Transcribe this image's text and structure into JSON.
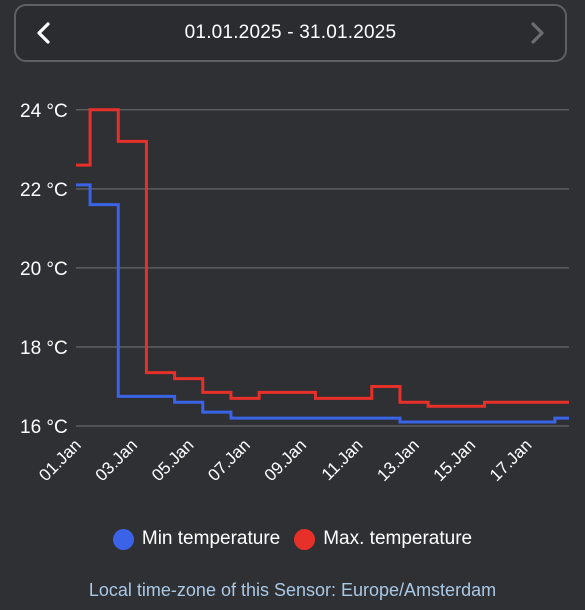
{
  "header": {
    "date_range": "01.01.2025 - 31.01.2025",
    "prev_icon": "chevron-left-icon",
    "next_icon": "chevron-right-icon"
  },
  "chart_data": {
    "type": "line",
    "step": true,
    "y_tick_labels": [
      "24 °C",
      "22 °C",
      "20 °C",
      "18 °C",
      "16 °C"
    ],
    "y_ticks": [
      24,
      22,
      20,
      18,
      16
    ],
    "ylim": [
      16,
      24.4
    ],
    "x_tick_labels": [
      "01.Jan",
      "03.Jan",
      "05.Jan",
      "07.Jan",
      "09.Jan",
      "11.Jan",
      "13.Jan",
      "15.Jan",
      "17.Jan"
    ],
    "x_ticks": [
      1,
      3,
      5,
      7,
      9,
      11,
      13,
      15,
      17
    ],
    "xlim": [
      1,
      18.5
    ],
    "grid": true,
    "legend_position": "bottom-center",
    "series": [
      {
        "name": "Min temperature",
        "color": "#3a63e8",
        "points": [
          [
            1,
            22.1
          ],
          [
            1.5,
            21.6
          ],
          [
            2.5,
            16.75
          ],
          [
            4.5,
            16.6
          ],
          [
            5.5,
            16.35
          ],
          [
            6.5,
            16.2
          ],
          [
            12.5,
            16.1
          ],
          [
            18,
            16.2
          ],
          [
            18.5,
            16.2
          ]
        ]
      },
      {
        "name": "Max. temperature",
        "color": "#e8302a",
        "points": [
          [
            1,
            22.6
          ],
          [
            1.5,
            24.0
          ],
          [
            2.5,
            23.2
          ],
          [
            3.5,
            17.35
          ],
          [
            4.5,
            17.2
          ],
          [
            5.5,
            16.85
          ],
          [
            6.5,
            16.7
          ],
          [
            7.5,
            16.85
          ],
          [
            9.5,
            16.7
          ],
          [
            11.5,
            17.0
          ],
          [
            12.5,
            16.6
          ],
          [
            13.5,
            16.5
          ],
          [
            15.5,
            16.6
          ],
          [
            18.5,
            16.6
          ]
        ]
      }
    ]
  },
  "footer": {
    "timezone_text": "Local time-zone of this Sensor: Europe/Amsterdam"
  }
}
